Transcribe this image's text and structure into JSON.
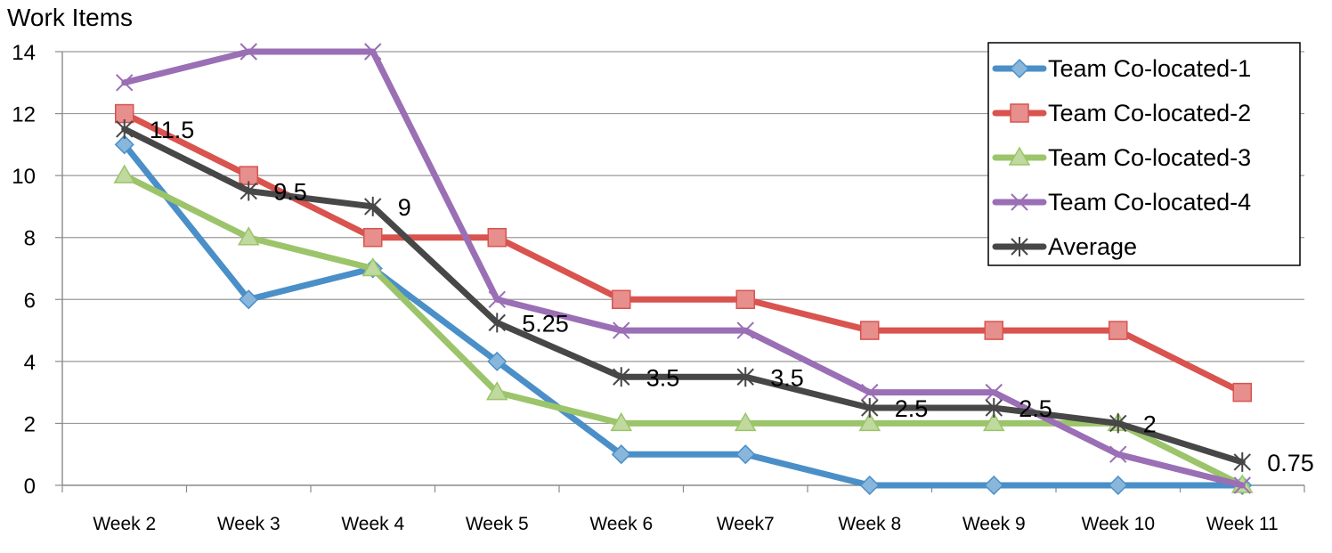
{
  "chart_data": {
    "type": "line",
    "ylabel": "Work Items",
    "categories": [
      "Week 2",
      "Week 3",
      "Week 4",
      "Week 5",
      "Week 6",
      "Week7",
      "Week 8",
      "Week 9",
      "Week 10",
      "Week 11"
    ],
    "ylim": [
      0,
      14
    ],
    "yticks": [
      0,
      2,
      4,
      6,
      8,
      10,
      12,
      14
    ],
    "grid": true,
    "legend_position": "top-right",
    "series": [
      {
        "name": "Team Co-located-1",
        "values": [
          11,
          6,
          7,
          4,
          1,
          1,
          0,
          0,
          0,
          0
        ],
        "color": "#4A8FC8",
        "marker": "diamond"
      },
      {
        "name": "Team Co-located-2",
        "values": [
          12,
          10,
          8,
          8,
          6,
          6,
          5,
          5,
          5,
          3
        ],
        "color": "#D9534F",
        "marker": "square"
      },
      {
        "name": "Team Co-located-3",
        "values": [
          10,
          8,
          7,
          3,
          2,
          2,
          2,
          2,
          2,
          0
        ],
        "color": "#9CC46A",
        "marker": "triangle"
      },
      {
        "name": "Team Co-located-4",
        "values": [
          13,
          14,
          14,
          6,
          5,
          5,
          3,
          3,
          1,
          0
        ],
        "color": "#9A6FB5",
        "marker": "x"
      },
      {
        "name": "Average",
        "values": [
          11.5,
          9.5,
          9,
          5.25,
          3.5,
          3.5,
          2.5,
          2.5,
          2,
          0.75
        ],
        "color": "#474747",
        "marker": "star"
      }
    ],
    "data_labels": {
      "series": "Average",
      "text": [
        "11.5",
        "9.5",
        "9",
        "5.25",
        "3.5",
        "3.5",
        "2.5",
        "2.5",
        "2",
        "0.75"
      ]
    }
  }
}
